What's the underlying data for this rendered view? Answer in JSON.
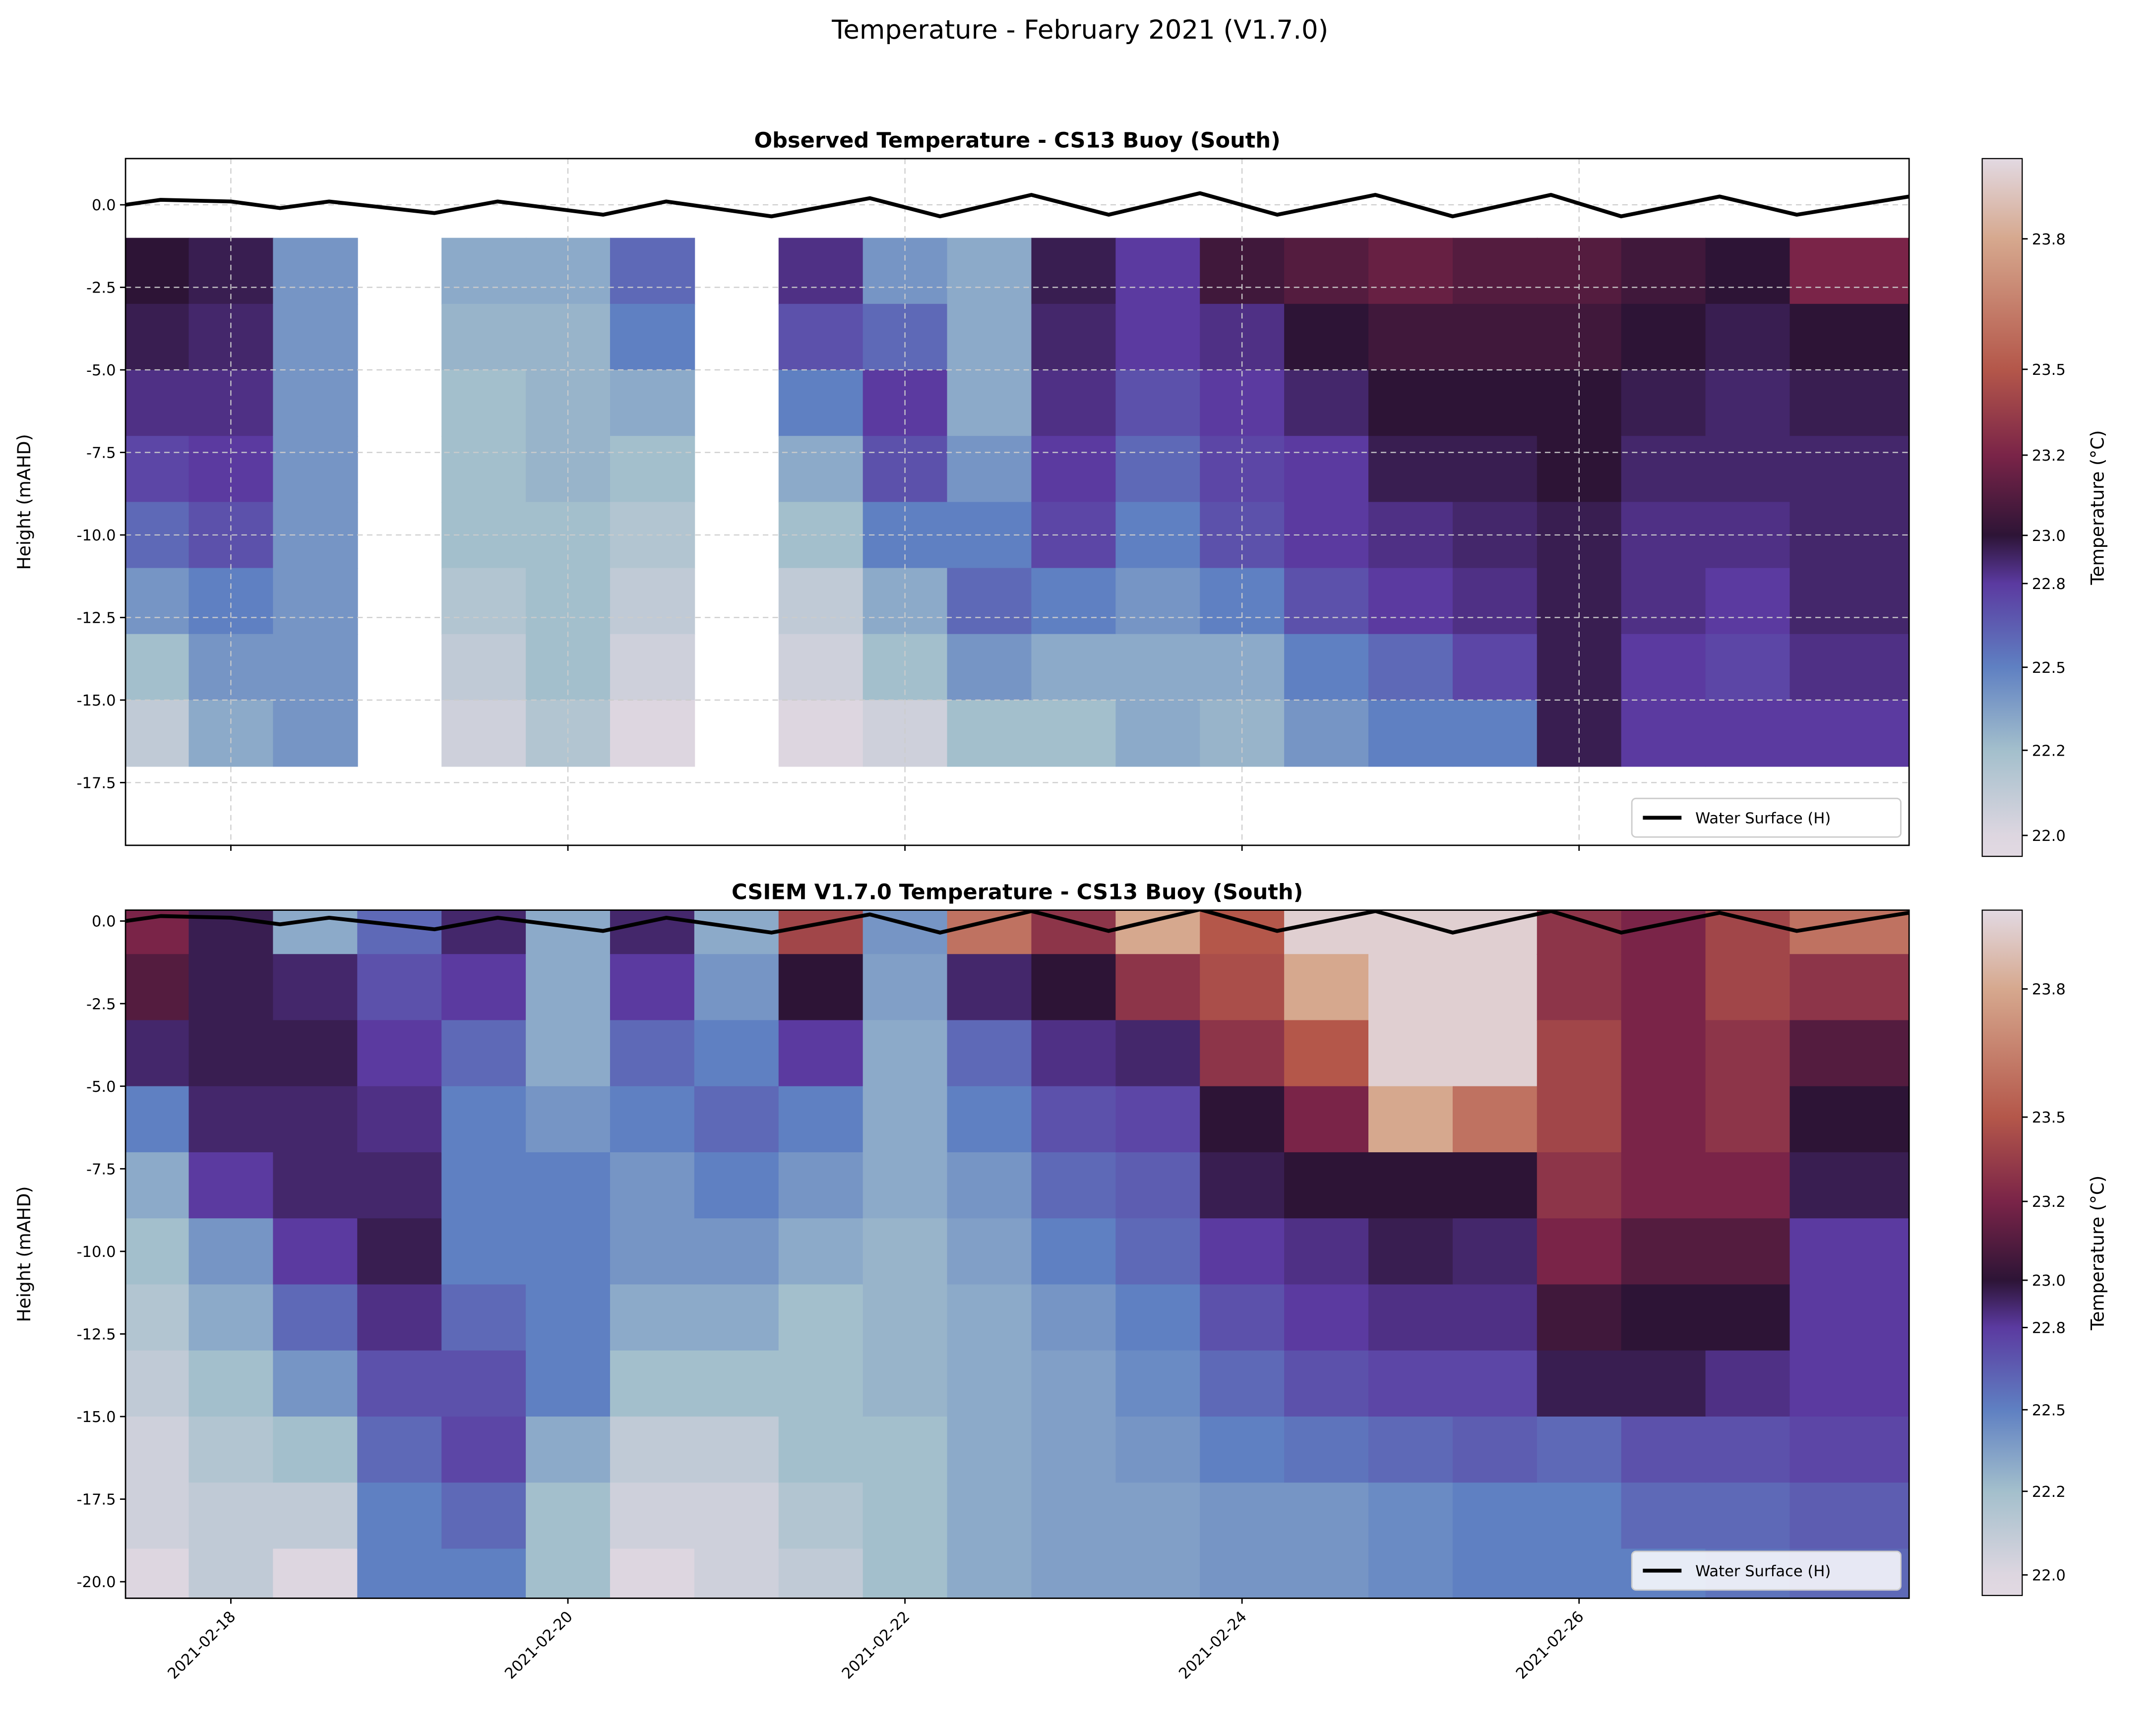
{
  "suptitle": "Temperature - February 2021 (V1.7.0)",
  "colors": {
    "water_surface": "#000000",
    "grid": "#cccccc"
  },
  "colormap": {
    "name": "twilight_shifted",
    "stops": [
      {
        "value": 21.94,
        "color": "#e2d9e2"
      },
      {
        "value": 22.0,
        "color": "#ddd6e0"
      },
      {
        "value": 22.2,
        "color": "#a3bfcc"
      },
      {
        "value": 22.5,
        "color": "#5f80c2"
      },
      {
        "value": 22.8,
        "color": "#5b3aa0"
      },
      {
        "value": 23.0,
        "color": "#2d1436"
      },
      {
        "value": 23.2,
        "color": "#7a2448"
      },
      {
        "value": 23.5,
        "color": "#b4574a"
      },
      {
        "value": 23.8,
        "color": "#d6a88e"
      },
      {
        "value": 24.05,
        "color": "#e2d9e2"
      }
    ]
  },
  "chart_data": [
    {
      "type": "heatmap",
      "title": "Observed Temperature - CS13 Buoy (South)",
      "ylabel": "Height (mAHD)",
      "xlabel": "",
      "xlim": [
        "2021-02-17T09:00",
        "2021-02-27T23:00"
      ],
      "ylim": [
        -19.4,
        1.4
      ],
      "grid": true,
      "yticks": [
        "0.0",
        "-2.5",
        "-5.0",
        "-7.5",
        "-10.0",
        "-12.5",
        "-15.0",
        "-17.5"
      ],
      "ytick_values": [
        0,
        -2.5,
        -5,
        -7.5,
        -10,
        -12.5,
        -15,
        -17.5
      ],
      "xtick_values": [
        "2021-02-18",
        "2021-02-20",
        "2021-02-22",
        "2021-02-24",
        "2021-02-26"
      ],
      "colorbar": {
        "label": "Temperature (°C)",
        "ticks": [
          "22.0",
          "22.2",
          "22.5",
          "22.8",
          "23.0",
          "23.2",
          "23.5",
          "23.8"
        ]
      },
      "legend": {
        "label": "Water Surface (H)",
        "placement": "lower right"
      },
      "depth_bins": [
        {
          "top": -1,
          "bottom": -3
        },
        {
          "top": -3,
          "bottom": -5
        },
        {
          "top": -5,
          "bottom": -7
        },
        {
          "top": -7,
          "bottom": -9
        },
        {
          "top": -9,
          "bottom": -11
        },
        {
          "top": -11,
          "bottom": -13
        },
        {
          "top": -13,
          "bottom": -15
        },
        {
          "top": -15,
          "bottom": -17
        }
      ],
      "times": [
        "2021-02-17T12:00",
        "2021-02-18T00:00",
        "2021-02-18T12:00",
        "2021-02-19T00:00",
        "2021-02-19T12:00",
        "2021-02-20T00:00",
        "2021-02-20T12:00",
        "2021-02-21T00:00",
        "2021-02-21T12:00",
        "2021-02-22T00:00",
        "2021-02-22T12:00",
        "2021-02-23T00:00",
        "2021-02-23T12:00",
        "2021-02-24T00:00",
        "2021-02-24T12:00",
        "2021-02-25T00:00",
        "2021-02-25T12:00",
        "2021-02-26T00:00",
        "2021-02-26T12:00",
        "2021-02-27T00:00",
        "2021-02-27T12:00"
      ],
      "values": [
        [
          23.0,
          22.95,
          22.85,
          22.75,
          22.6,
          22.4,
          22.2,
          22.1
        ],
        [
          22.95,
          22.9,
          22.85,
          22.8,
          22.7,
          22.5,
          22.4,
          22.3
        ],
        [
          22.4,
          22.4,
          22.4,
          22.4,
          22.4,
          22.4,
          22.4,
          22.4
        ],
        [
          null,
          null,
          null,
          null,
          null,
          null,
          null,
          null
        ],
        [
          22.3,
          22.25,
          22.2,
          22.2,
          22.2,
          22.15,
          22.1,
          22.05
        ],
        [
          22.3,
          22.25,
          22.25,
          22.25,
          22.2,
          22.2,
          22.2,
          22.15
        ],
        [
          22.6,
          22.5,
          22.3,
          22.2,
          22.15,
          22.1,
          22.05,
          22.0
        ],
        [
          null,
          null,
          null,
          null,
          null,
          null,
          null,
          null
        ],
        [
          22.85,
          22.7,
          22.5,
          22.3,
          22.2,
          22.1,
          22.05,
          22.0
        ],
        [
          22.4,
          22.6,
          22.8,
          22.7,
          22.5,
          22.3,
          22.2,
          22.05
        ],
        [
          22.3,
          22.3,
          22.3,
          22.4,
          22.5,
          22.6,
          22.4,
          22.2
        ],
        [
          22.95,
          22.9,
          22.85,
          22.8,
          22.75,
          22.5,
          22.3,
          22.2
        ],
        [
          22.8,
          22.8,
          22.7,
          22.6,
          22.5,
          22.4,
          22.3,
          22.3
        ],
        [
          23.05,
          22.85,
          22.8,
          22.75,
          22.7,
          22.5,
          22.3,
          22.25
        ],
        [
          23.1,
          23.0,
          22.9,
          22.8,
          22.8,
          22.7,
          22.5,
          22.4
        ],
        [
          23.15,
          23.05,
          23.0,
          22.95,
          22.85,
          22.8,
          22.6,
          22.5
        ],
        [
          23.1,
          23.05,
          23.0,
          22.95,
          22.9,
          22.85,
          22.75,
          22.5
        ],
        [
          23.1,
          23.05,
          23.0,
          23.0,
          22.95,
          22.95,
          22.95,
          22.95
        ],
        [
          23.05,
          23.0,
          22.95,
          22.9,
          22.85,
          22.85,
          22.8,
          22.8
        ],
        [
          23.0,
          22.95,
          22.9,
          22.9,
          22.85,
          22.8,
          22.75,
          22.8
        ],
        [
          23.2,
          23.0,
          22.95,
          22.9,
          22.9,
          22.9,
          22.85,
          22.8
        ]
      ],
      "water_surface": {
        "times": [
          "2021-02-17T09:00",
          "2021-02-17T14:00",
          "2021-02-18T00:00",
          "2021-02-18T07:00",
          "2021-02-18T14:00",
          "2021-02-19T05:00",
          "2021-02-19T14:00",
          "2021-02-20T05:00",
          "2021-02-20T14:00",
          "2021-02-21T05:00",
          "2021-02-21T19:00",
          "2021-02-22T05:00",
          "2021-02-22T18:00",
          "2021-02-23T05:00",
          "2021-02-23T18:00",
          "2021-02-24T05:00",
          "2021-02-24T19:00",
          "2021-02-25T06:00",
          "2021-02-25T20:00",
          "2021-02-26T06:00",
          "2021-02-26T20:00",
          "2021-02-27T07:00",
          "2021-02-27T23:00"
        ],
        "heights": [
          0.0,
          0.15,
          0.1,
          -0.1,
          0.1,
          -0.25,
          0.1,
          -0.3,
          0.1,
          -0.35,
          0.2,
          -0.35,
          0.3,
          -0.3,
          0.35,
          -0.3,
          0.3,
          -0.35,
          0.3,
          -0.35,
          0.25,
          -0.3,
          0.25
        ]
      }
    },
    {
      "type": "heatmap",
      "title": "CSIEM V1.7.0 Temperature - CS13 Buoy (South)",
      "ylabel": "Height (mAHD)",
      "xlabel": "",
      "xlim": [
        "2021-02-17T09:00",
        "2021-02-27T23:00"
      ],
      "ylim": [
        -20.5,
        0.33
      ],
      "grid": false,
      "yticks": [
        "0.0",
        "-2.5",
        "-5.0",
        "-7.5",
        "-10.0",
        "-12.5",
        "-15.0",
        "-17.5",
        "-20.0"
      ],
      "ytick_values": [
        0,
        -2.5,
        -5,
        -7.5,
        -10,
        -12.5,
        -15,
        -17.5,
        -20
      ],
      "xticks": [
        "2021-02-18",
        "2021-02-20",
        "2021-02-22",
        "2021-02-24",
        "2021-02-26"
      ],
      "colorbar": {
        "label": "Temperature (°C)",
        "ticks": [
          "22.0",
          "22.2",
          "22.5",
          "22.8",
          "23.0",
          "23.2",
          "23.5",
          "23.8"
        ]
      },
      "legend": {
        "label": "Water Surface (H)",
        "placement": "lower right"
      },
      "depth_bins": [
        {
          "top": 1,
          "bottom": -1
        },
        {
          "top": -1,
          "bottom": -3
        },
        {
          "top": -3,
          "bottom": -5
        },
        {
          "top": -5,
          "bottom": -7
        },
        {
          "top": -7,
          "bottom": -9
        },
        {
          "top": -9,
          "bottom": -11
        },
        {
          "top": -11,
          "bottom": -13
        },
        {
          "top": -13,
          "bottom": -15
        },
        {
          "top": -15,
          "bottom": -17
        },
        {
          "top": -17,
          "bottom": -19
        },
        {
          "top": -19,
          "bottom": -21
        }
      ],
      "times": [
        "2021-02-17T12:00",
        "2021-02-18T00:00",
        "2021-02-18T12:00",
        "2021-02-19T00:00",
        "2021-02-19T12:00",
        "2021-02-20T00:00",
        "2021-02-20T12:00",
        "2021-02-21T00:00",
        "2021-02-21T12:00",
        "2021-02-22T00:00",
        "2021-02-22T12:00",
        "2021-02-23T00:00",
        "2021-02-23T12:00",
        "2021-02-24T00:00",
        "2021-02-24T12:00",
        "2021-02-25T00:00",
        "2021-02-25T12:00",
        "2021-02-26T00:00",
        "2021-02-26T12:00",
        "2021-02-27T00:00",
        "2021-02-27T12:00"
      ],
      "values": [
        [
          23.2,
          23.1,
          22.9,
          22.5,
          22.3,
          22.2,
          22.15,
          22.1,
          22.05,
          22.05,
          22.0
        ],
        [
          22.95,
          22.95,
          22.95,
          22.9,
          22.8,
          22.4,
          22.3,
          22.2,
          22.15,
          22.1,
          22.1
        ],
        [
          22.3,
          22.9,
          22.95,
          22.9,
          22.9,
          22.8,
          22.6,
          22.4,
          22.2,
          22.1,
          22.0
        ],
        [
          22.6,
          22.7,
          22.8,
          22.85,
          22.9,
          22.95,
          22.85,
          22.7,
          22.6,
          22.5,
          22.5
        ],
        [
          22.9,
          22.8,
          22.6,
          22.5,
          22.5,
          22.5,
          22.6,
          22.7,
          22.75,
          22.6,
          22.5
        ],
        [
          22.3,
          22.3,
          22.3,
          22.4,
          22.5,
          22.5,
          22.5,
          22.5,
          22.3,
          22.2,
          22.2
        ],
        [
          22.9,
          22.8,
          22.6,
          22.5,
          22.4,
          22.4,
          22.3,
          22.2,
          22.1,
          22.05,
          22.0
        ],
        [
          22.3,
          22.4,
          22.5,
          22.6,
          22.5,
          22.4,
          22.3,
          22.2,
          22.1,
          22.05,
          22.05
        ],
        [
          23.4,
          23.0,
          22.8,
          22.5,
          22.4,
          22.3,
          22.2,
          22.2,
          22.2,
          22.15,
          22.1
        ],
        [
          22.4,
          22.35,
          22.3,
          22.3,
          22.3,
          22.25,
          22.25,
          22.25,
          22.2,
          22.2,
          22.2
        ],
        [
          23.6,
          22.9,
          22.6,
          22.5,
          22.4,
          22.35,
          22.3,
          22.3,
          22.3,
          22.3,
          22.3
        ],
        [
          23.3,
          23.0,
          22.85,
          22.7,
          22.6,
          22.5,
          22.4,
          22.35,
          22.35,
          22.35,
          22.35
        ],
        [
          23.8,
          23.3,
          22.9,
          22.75,
          22.65,
          22.6,
          22.5,
          22.45,
          22.4,
          22.35,
          22.35
        ],
        [
          23.5,
          23.45,
          23.3,
          23.0,
          22.95,
          22.8,
          22.7,
          22.6,
          22.5,
          22.4,
          22.4
        ],
        [
          24.0,
          23.8,
          23.5,
          23.2,
          23.0,
          22.85,
          22.8,
          22.7,
          22.55,
          22.4,
          22.4
        ],
        [
          24.0,
          24.0,
          24.0,
          23.8,
          23.0,
          22.95,
          22.85,
          22.75,
          22.6,
          22.45,
          22.45
        ],
        [
          24.0,
          24.0,
          24.0,
          23.6,
          23.0,
          22.9,
          22.85,
          22.75,
          22.65,
          22.5,
          22.5
        ],
        [
          23.3,
          23.3,
          23.4,
          23.4,
          23.3,
          23.2,
          23.05,
          22.95,
          22.6,
          22.5,
          22.5
        ],
        [
          23.2,
          23.2,
          23.2,
          23.2,
          23.2,
          23.1,
          23.0,
          22.95,
          22.7,
          22.6,
          22.5
        ],
        [
          23.4,
          23.4,
          23.3,
          23.3,
          23.2,
          23.1,
          23.0,
          22.85,
          22.7,
          22.6,
          22.55
        ],
        [
          23.6,
          23.3,
          23.1,
          23.0,
          22.95,
          22.8,
          22.8,
          22.8,
          22.75,
          22.65,
          22.6
        ]
      ],
      "water_surface": {
        "times": [
          "2021-02-17T09:00",
          "2021-02-17T14:00",
          "2021-02-18T00:00",
          "2021-02-18T07:00",
          "2021-02-18T14:00",
          "2021-02-19T05:00",
          "2021-02-19T14:00",
          "2021-02-20T05:00",
          "2021-02-20T14:00",
          "2021-02-21T05:00",
          "2021-02-21T19:00",
          "2021-02-22T05:00",
          "2021-02-22T18:00",
          "2021-02-23T05:00",
          "2021-02-23T18:00",
          "2021-02-24T05:00",
          "2021-02-24T19:00",
          "2021-02-25T06:00",
          "2021-02-25T20:00",
          "2021-02-26T06:00",
          "2021-02-26T20:00",
          "2021-02-27T07:00",
          "2021-02-27T23:00"
        ],
        "heights": [
          0.0,
          0.15,
          0.1,
          -0.1,
          0.1,
          -0.25,
          0.1,
          -0.3,
          0.1,
          -0.35,
          0.2,
          -0.35,
          0.3,
          -0.3,
          0.35,
          -0.3,
          0.3,
          -0.35,
          0.3,
          -0.35,
          0.25,
          -0.3,
          0.25
        ]
      }
    }
  ]
}
